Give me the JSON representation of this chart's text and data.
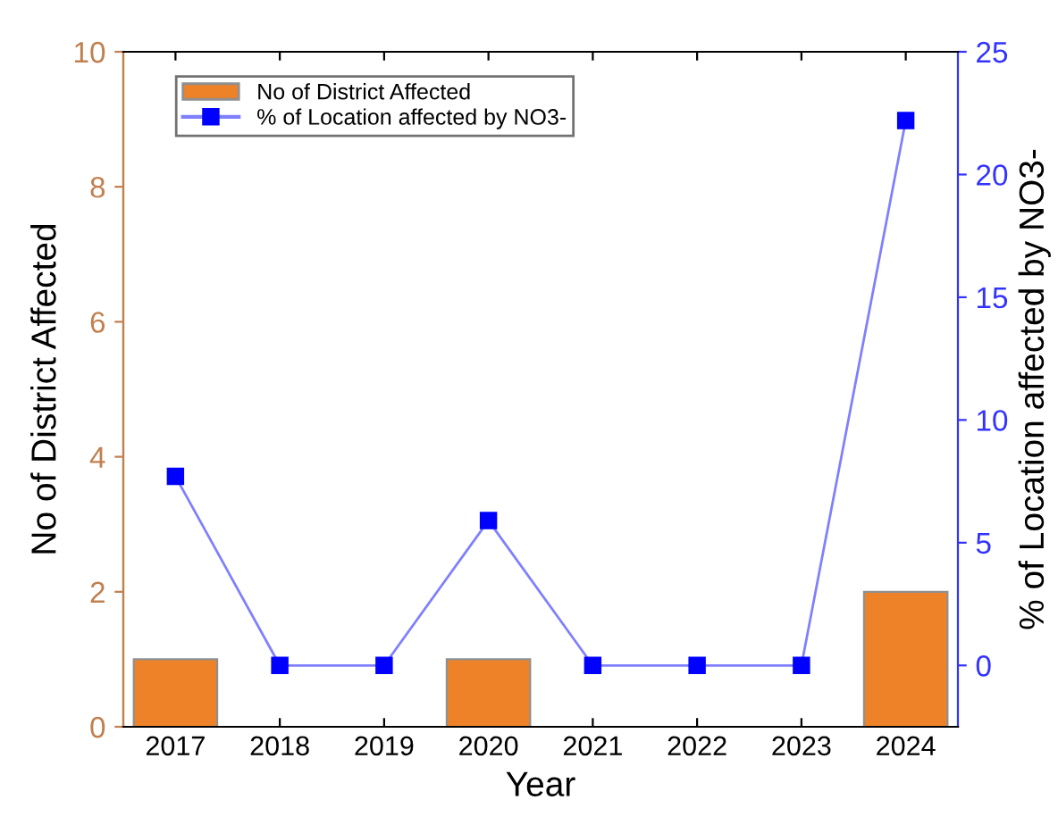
{
  "chart_data": {
    "type": "bar",
    "xlabel": "Year",
    "ylabel": "No of District Affected",
    "y2label": "% of Location affected by NO3-",
    "categories": [
      "2017",
      "2018",
      "2019",
      "2020",
      "2021",
      "2022",
      "2023",
      "2024"
    ],
    "series": [
      {
        "name": "No of District Affected",
        "color": "#ed8228",
        "values": [
          1,
          0,
          0,
          1,
          0,
          0,
          0,
          2
        ]
      },
      {
        "name": "% of Location affected by NO3-",
        "type": "line",
        "axis": "y2",
        "color": "#0000ff",
        "values": [
          7.7,
          0,
          0,
          5.9,
          0,
          0,
          0,
          22.2
        ]
      }
    ],
    "ylim": [
      0,
      10
    ],
    "yticks": [
      0,
      2,
      4,
      6,
      8,
      10
    ],
    "y2lim": [
      -2.5,
      25
    ],
    "y2ticks": [
      0,
      5,
      10,
      15,
      20,
      25
    ],
    "marker": "square",
    "legend": "top left",
    "grid": false
  }
}
